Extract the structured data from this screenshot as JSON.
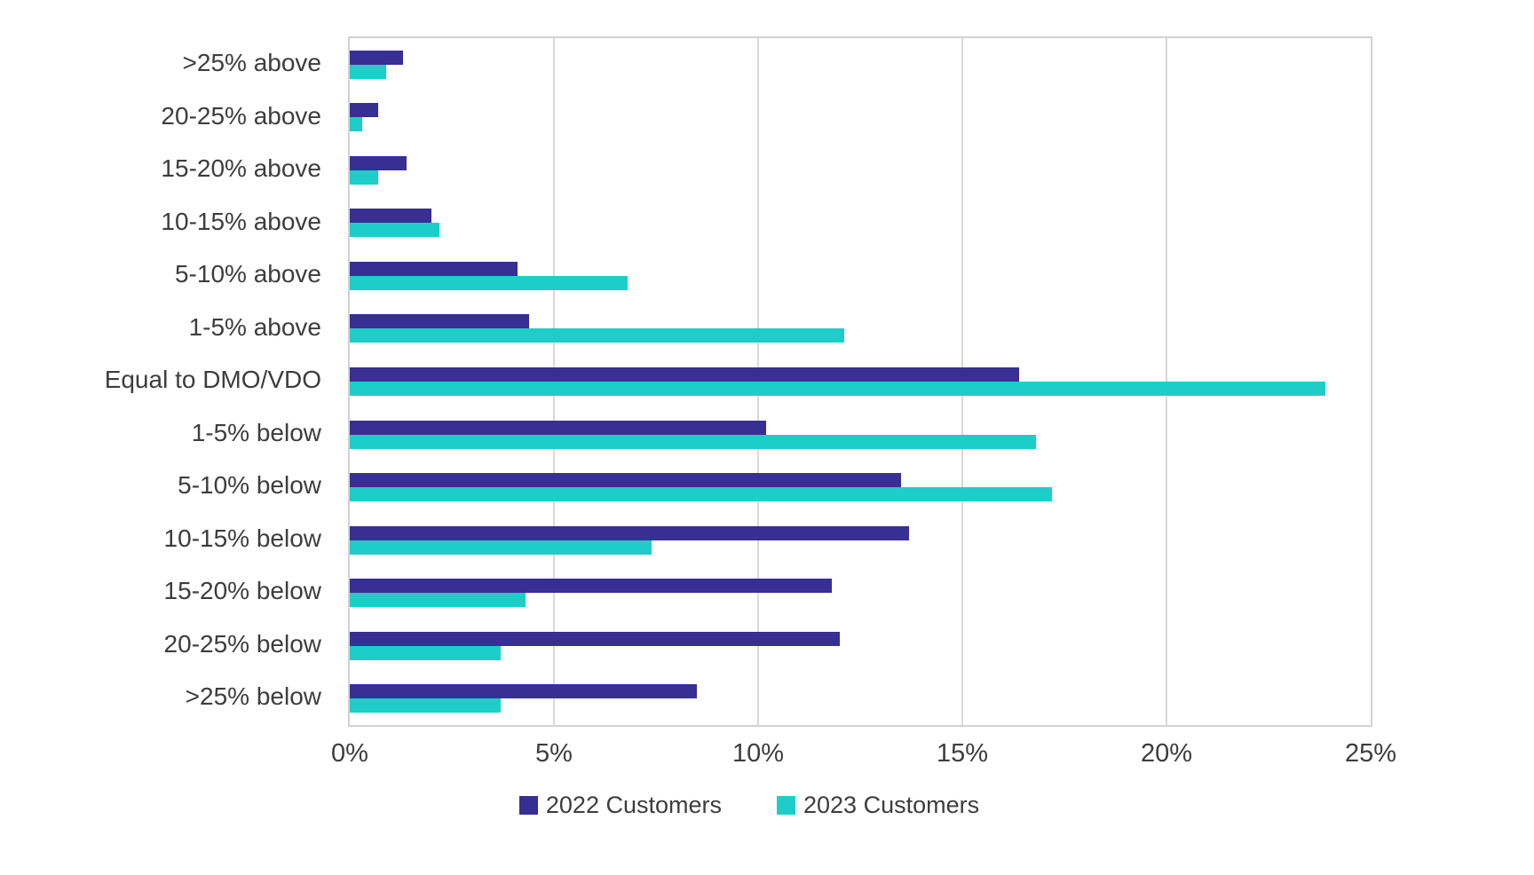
{
  "chart_data": {
    "type": "bar",
    "orientation": "horizontal",
    "title": "",
    "xlabel": "",
    "ylabel": "",
    "xlim": [
      0,
      25
    ],
    "x_ticks": [
      "0%",
      "5%",
      "10%",
      "15%",
      "20%",
      "25%"
    ],
    "grid": "vertical",
    "legend_position": "bottom",
    "categories": [
      ">25% above",
      "20-25% above",
      "15-20% above",
      "10-15% above",
      "5-10% above",
      "1-5% above",
      "Equal to DMO/VDO",
      "1-5% below",
      "5-10% below",
      "10-15% below",
      "15-20% below",
      "20-25% below",
      ">25% below"
    ],
    "series": [
      {
        "name": "2022 Customers",
        "color": "#382f93",
        "values": [
          1.3,
          0.7,
          1.4,
          2.0,
          4.1,
          4.4,
          16.4,
          10.2,
          13.5,
          13.7,
          11.8,
          12.0,
          8.5
        ]
      },
      {
        "name": "2023 Customers",
        "color": "#1fcdc8",
        "values": [
          0.9,
          0.3,
          0.7,
          2.2,
          6.8,
          12.1,
          23.9,
          16.8,
          17.2,
          7.4,
          4.3,
          3.7,
          3.7
        ]
      }
    ]
  },
  "colors": {
    "gridline": "#d9d9d9",
    "plot_border": "#d2d2d2",
    "label_text": "#3d3d3d",
    "background": "#ffffff"
  }
}
